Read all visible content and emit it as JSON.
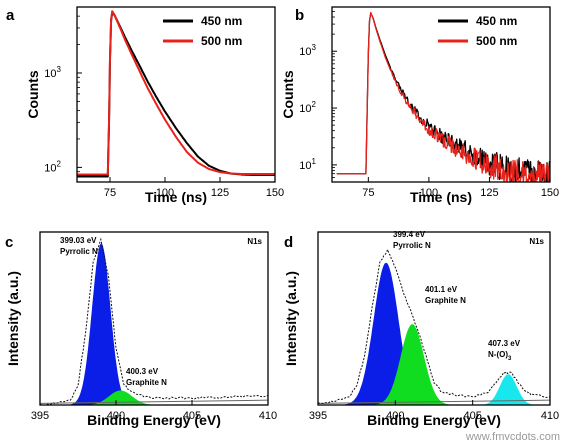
{
  "watermark": "www.fmvcdots.com",
  "chart_data": [
    {
      "panel": "a",
      "type": "line",
      "xlabel": "Time (ns)",
      "ylabel": "Counts",
      "xlim": [
        60,
        150
      ],
      "ylim": [
        70,
        5000
      ],
      "yscale": "log",
      "xticks": [
        75,
        100,
        125,
        150
      ],
      "yticks": [
        {
          "v": 100,
          "label": "10",
          "sup": "2"
        },
        {
          "v": 1000,
          "label": "10",
          "sup": "3"
        }
      ],
      "legend_position": "top-right",
      "series": [
        {
          "name": "450 nm",
          "color": "#000000",
          "x": [
            60,
            74,
            74.5,
            75,
            75.5,
            76,
            77,
            78,
            80,
            82,
            85,
            88,
            92,
            96,
            100,
            105,
            110,
            115,
            120,
            125,
            130,
            135,
            140,
            145,
            150
          ],
          "y": [
            80,
            80,
            250,
            1400,
            3600,
            4400,
            4100,
            3700,
            2950,
            2350,
            1700,
            1250,
            820,
            560,
            390,
            260,
            180,
            130,
            104,
            92,
            86,
            84,
            83,
            83,
            83
          ]
        },
        {
          "name": "500 nm",
          "color": "#e8221b",
          "x": [
            60,
            74,
            74.5,
            75,
            75.5,
            76,
            77,
            78,
            80,
            82,
            85,
            88,
            92,
            96,
            100,
            105,
            110,
            115,
            120,
            125,
            130,
            135,
            140,
            145,
            150
          ],
          "y": [
            84,
            84,
            260,
            1500,
            3700,
            4500,
            4150,
            3650,
            2850,
            2200,
            1550,
            1100,
            700,
            470,
            320,
            210,
            145,
            112,
            96,
            89,
            86,
            85,
            85,
            85,
            85
          ]
        }
      ]
    },
    {
      "panel": "b",
      "type": "line",
      "xlabel": "Time (ns)",
      "ylabel": "Counts",
      "xlim": [
        60,
        150
      ],
      "ylim": [
        5,
        6000
      ],
      "yscale": "log",
      "xticks": [
        75,
        100,
        125,
        150
      ],
      "yticks": [
        {
          "v": 10,
          "label": "10",
          "sup": "1"
        },
        {
          "v": 100,
          "label": "10",
          "sup": "2"
        },
        {
          "v": 1000,
          "label": "10",
          "sup": "3"
        }
      ],
      "legend_position": "top-right",
      "series": [
        {
          "name": "450 nm",
          "color": "#000000",
          "x": [
            62,
            74,
            75,
            75.5,
            76,
            77,
            78,
            80,
            82,
            85,
            88,
            92,
            96,
            100,
            105,
            110,
            115,
            120,
            125,
            130,
            135,
            140,
            145,
            150
          ],
          "y": [
            7,
            7,
            900,
            3400,
            4700,
            3800,
            2700,
            1500,
            860,
            420,
            230,
            120,
            72,
            48,
            33,
            24,
            18,
            14,
            11,
            9,
            8,
            7.5,
            7,
            7
          ]
        },
        {
          "name": "500 nm",
          "color": "#e8221b",
          "x": [
            62,
            74,
            75,
            75.5,
            76,
            77,
            78,
            80,
            82,
            85,
            88,
            92,
            96,
            100,
            105,
            110,
            115,
            120,
            125,
            130,
            135,
            140,
            145,
            150
          ],
          "y": [
            7,
            7,
            850,
            3300,
            4800,
            3700,
            2600,
            1400,
            780,
            380,
            205,
            108,
            64,
            42,
            29,
            21,
            16,
            12,
            10,
            8.5,
            7.5,
            7,
            6.8,
            6.8
          ]
        }
      ]
    },
    {
      "panel": "c",
      "type": "area",
      "xlabel": "Binding Energy (eV)",
      "ylabel": "Intensity (a.u.)",
      "label": "N1s",
      "xlim": [
        395,
        410
      ],
      "ylim": [
        0,
        1.07
      ],
      "xticks": [
        395,
        400,
        405,
        410
      ],
      "peaks": [
        {
          "center": 399.03,
          "sigma": 0.6,
          "amp": 1.0,
          "color": "#0a1ee8",
          "label_lines": [
            "399.03 eV",
            "Pyrrolic N"
          ]
        },
        {
          "center": 400.3,
          "sigma": 0.75,
          "amp": 0.09,
          "color": "#10dd20",
          "label_lines": [
            "400.3 eV",
            "Graphite N"
          ]
        }
      ],
      "envelope_x": [
        395,
        396,
        397,
        397.5,
        398,
        398.5,
        399,
        399.5,
        400,
        400.5,
        401,
        402,
        403,
        404,
        405,
        406,
        407,
        408,
        409,
        410
      ],
      "envelope_y": [
        0.0,
        0.01,
        0.03,
        0.12,
        0.45,
        0.88,
        1.02,
        0.8,
        0.35,
        0.13,
        0.08,
        0.05,
        0.04,
        0.045,
        0.04,
        0.05,
        0.045,
        0.055,
        0.05,
        0.06
      ]
    },
    {
      "panel": "d",
      "type": "area",
      "xlabel": "Binding Energy (eV)",
      "ylabel": "Intensity (a.u.)",
      "label": "N1s",
      "xlim": [
        395,
        410
      ],
      "ylim": [
        0,
        1.07
      ],
      "xticks": [
        395,
        400,
        405,
        410
      ],
      "peaks": [
        {
          "center": 399.4,
          "sigma": 0.8,
          "amp": 0.88,
          "color": "#0a1ee8",
          "label_lines": [
            "399.4 eV",
            "Pyrrolic N"
          ]
        },
        {
          "center": 401.1,
          "sigma": 0.75,
          "amp": 0.5,
          "color": "#10dd20",
          "label_lines": [
            "401.1 eV",
            "Graphite N"
          ]
        },
        {
          "center": 407.3,
          "sigma": 0.55,
          "amp": 0.19,
          "color": "#18e8ee",
          "label_lines": [
            "407.3 eV",
            "N-(O)",
            "3"
          ]
        }
      ],
      "envelope_x": [
        395,
        396,
        397,
        397.5,
        398,
        398.5,
        399,
        399.5,
        400,
        400.5,
        401,
        401.5,
        402,
        402.5,
        403,
        404,
        405,
        406,
        406.5,
        407,
        407.5,
        408,
        408.5,
        409,
        410
      ],
      "envelope_y": [
        0.01,
        0.02,
        0.05,
        0.12,
        0.3,
        0.6,
        0.88,
        0.96,
        0.85,
        0.7,
        0.58,
        0.45,
        0.3,
        0.14,
        0.08,
        0.06,
        0.05,
        0.08,
        0.14,
        0.2,
        0.2,
        0.13,
        0.08,
        0.06,
        0.05
      ]
    }
  ]
}
